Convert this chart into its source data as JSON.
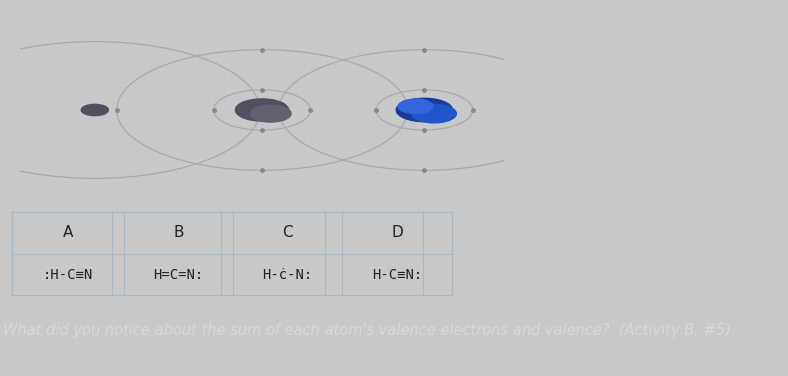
{
  "fig_bg": "#c8c8c8",
  "panel_bg": "#e8ecf0",
  "panel_border": "#b0b8c0",
  "grid_color": "#c8cdd2",
  "orbit_color": "#aaaaaa",
  "electron_color": "#888888",
  "h_nucleus_color": "#505060",
  "c_nucleus_color1": "#505060",
  "c_nucleus_color2": "#606070",
  "n_nucleus_color1": "#1a3a99",
  "n_nucleus_color2": "#2255cc",
  "n_nucleus_color3": "#3366dd",
  "table_bg": "#dde8f0",
  "table_line_color": "#aab8c4",
  "col_headers": [
    "A",
    "B",
    "C",
    "D"
  ],
  "col_formulas": [
    ":H-C≡N",
    "H=C=N:",
    "H-ċ-N:",
    "H-C≡N:"
  ],
  "header_fontsize": 11,
  "formula_fontsize": 10,
  "sep_bar_color": "#555560",
  "question_bg": "#2a2a2e",
  "question_text": "What did you notice about the sum of each atom's valence electrons and valence?  (Activity B, #5)",
  "question_color": "#d8d8d8",
  "question_fontsize": 10.5
}
